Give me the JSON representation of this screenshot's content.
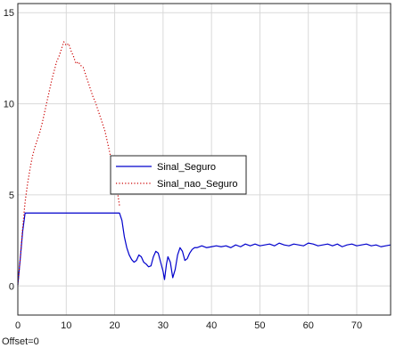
{
  "chart_data": {
    "type": "line",
    "title": "",
    "xlabel": "",
    "ylabel": "",
    "xlim": [
      0,
      77
    ],
    "ylim": [
      -1.6,
      15.5
    ],
    "x_ticks": [
      0,
      10,
      20,
      30,
      40,
      50,
      60,
      70
    ],
    "y_ticks": [
      0,
      5,
      10,
      15
    ],
    "grid": true,
    "legend_position": "center",
    "series": [
      {
        "name": "Sinal_Seguro",
        "color": "#0000cc",
        "style": "solid",
        "x": [
          0,
          0.5,
          1,
          1.5,
          5,
          10,
          15,
          20,
          21,
          21.5,
          22,
          22.5,
          23,
          23.5,
          24,
          24.5,
          25,
          25.5,
          26,
          26.5,
          27,
          27.5,
          28,
          28.5,
          29,
          29.5,
          30,
          30.3,
          30.7,
          31,
          31.5,
          32,
          32.5,
          33,
          33.5,
          34,
          34.5,
          35,
          35.5,
          36,
          36.5,
          37,
          38,
          39,
          40,
          41,
          42,
          43,
          44,
          45,
          46,
          47,
          48,
          49,
          50,
          51,
          52,
          53,
          54,
          55,
          56,
          57,
          58,
          59,
          60,
          61,
          62,
          63,
          64,
          65,
          66,
          67,
          68,
          69,
          70,
          71,
          72,
          73,
          74,
          75,
          76,
          77
        ],
        "values": [
          0.05,
          1.5,
          3.0,
          4.0,
          4.0,
          4.0,
          4.0,
          4.0,
          4.0,
          3.6,
          2.7,
          2.1,
          1.7,
          1.45,
          1.3,
          1.4,
          1.7,
          1.6,
          1.3,
          1.2,
          1.05,
          1.1,
          1.6,
          1.9,
          1.8,
          1.3,
          0.8,
          0.35,
          1.2,
          1.6,
          1.3,
          0.45,
          0.9,
          1.7,
          2.1,
          1.9,
          1.4,
          1.5,
          1.8,
          2.0,
          2.1,
          2.1,
          2.2,
          2.1,
          2.15,
          2.2,
          2.15,
          2.2,
          2.1,
          2.25,
          2.15,
          2.3,
          2.2,
          2.3,
          2.2,
          2.25,
          2.3,
          2.2,
          2.35,
          2.25,
          2.2,
          2.3,
          2.25,
          2.2,
          2.35,
          2.3,
          2.2,
          2.25,
          2.3,
          2.2,
          2.3,
          2.15,
          2.25,
          2.3,
          2.2,
          2.25,
          2.3,
          2.2,
          2.25,
          2.15,
          2.2,
          2.25
        ]
      },
      {
        "name": "Sinal_nao_Seguro",
        "color": "#cc0000",
        "style": "dotted",
        "x": [
          0,
          0.5,
          1,
          1.5,
          2,
          2.5,
          3,
          3.5,
          4,
          4.5,
          5,
          5.5,
          6,
          6.5,
          7,
          7.5,
          8,
          8.5,
          9,
          9.5,
          10,
          10.5,
          11,
          11.5,
          12,
          12.5,
          13,
          13.5,
          14,
          14.5,
          15,
          15.5,
          16,
          16.5,
          17,
          17.5,
          18,
          18.5,
          19,
          19.5,
          20,
          20.5,
          21
        ],
        "values": [
          0.05,
          1.5,
          3.2,
          4.6,
          5.6,
          6.4,
          7.1,
          7.6,
          8.0,
          8.4,
          8.9,
          9.5,
          10.1,
          10.7,
          11.3,
          11.8,
          12.3,
          12.6,
          13.0,
          13.4,
          13.2,
          13.3,
          12.9,
          12.6,
          12.2,
          12.3,
          12.1,
          12.0,
          11.6,
          11.2,
          10.8,
          10.4,
          10.1,
          9.7,
          9.3,
          8.9,
          8.5,
          7.9,
          7.3,
          6.7,
          6.1,
          5.3,
          4.4
        ]
      }
    ],
    "legend_labels": [
      "Sinal_Seguro",
      "Sinal_nao_Seguro"
    ]
  },
  "footer": {
    "offset_text": "Offset=0"
  }
}
